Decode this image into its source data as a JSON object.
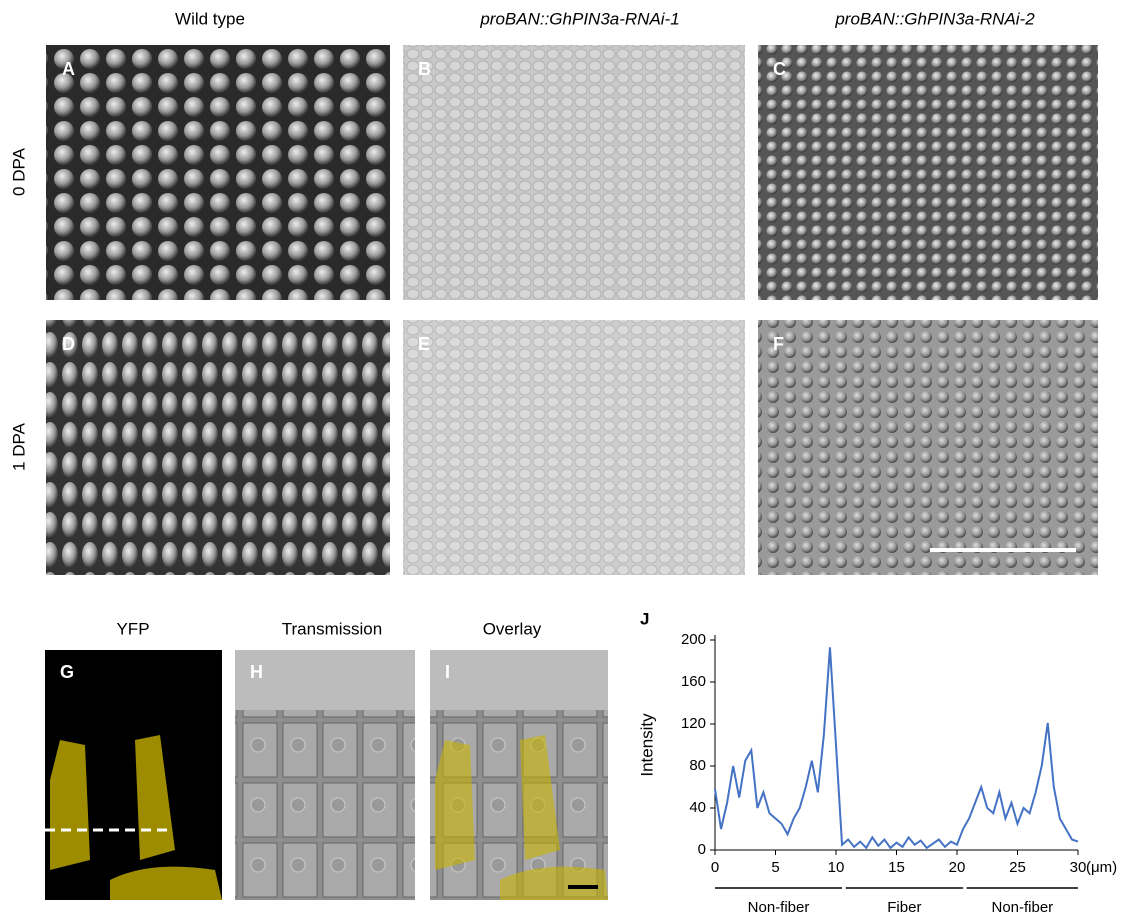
{
  "column_titles": [
    "Wild type",
    "proBAN::GhPIN3a-RNAi-1",
    "proBAN::GhPIN3a-RNAi-2"
  ],
  "row_labels": [
    "0 DPA",
    "1 DPA"
  ],
  "panel_labels": [
    "A",
    "B",
    "C",
    "D",
    "E",
    "F",
    "G",
    "H",
    "I"
  ],
  "bottom_titles": [
    "YFP",
    "Transmission",
    "Overlay"
  ],
  "chart_data": {
    "type": "line",
    "label": "J",
    "ylabel": "Intensity",
    "x_unit": "(μm)",
    "x": [
      0,
      0.5,
      1,
      1.5,
      2,
      2.5,
      3,
      3.5,
      4,
      4.5,
      5,
      5.5,
      6,
      6.5,
      7,
      7.5,
      8,
      8.5,
      9,
      9.5,
      10,
      10.5,
      11,
      11.5,
      12,
      12.5,
      13,
      13.5,
      14,
      14.5,
      15,
      15.5,
      16,
      16.5,
      17,
      17.5,
      18,
      18.5,
      19,
      19.5,
      20,
      20.5,
      21,
      21.5,
      22,
      22.5,
      23,
      23.5,
      24,
      24.5,
      25,
      25.5,
      26,
      26.5,
      27,
      27.5,
      28,
      28.5,
      29,
      29.5,
      30
    ],
    "series": [
      {
        "color": "#4472c4",
        "values": [
          58,
          20,
          45,
          80,
          50,
          85,
          95,
          40,
          55,
          35,
          30,
          25,
          15,
          30,
          40,
          60,
          85,
          55,
          110,
          193,
          100,
          5,
          10,
          3,
          8,
          2,
          12,
          4,
          10,
          2,
          7,
          3,
          12,
          5,
          9,
          2,
          6,
          10,
          3,
          8,
          5,
          20,
          30,
          45,
          60,
          40,
          35,
          55,
          30,
          45,
          25,
          40,
          35,
          55,
          80,
          121,
          60,
          30,
          20,
          10,
          8
        ]
      }
    ],
    "xlim": [
      0,
      30
    ],
    "ylim": [
      0,
      200
    ],
    "xticks": [
      0,
      5,
      10,
      15,
      20,
      25,
      30
    ],
    "yticks": [
      0,
      40,
      80,
      120,
      160,
      200
    ],
    "regions": [
      {
        "label": "Non-fiber",
        "start": 0,
        "end": 10.5
      },
      {
        "label": "Fiber",
        "start": 10.8,
        "end": 20.5
      },
      {
        "label": "Non-fiber",
        "start": 20.8,
        "end": 30
      }
    ]
  }
}
